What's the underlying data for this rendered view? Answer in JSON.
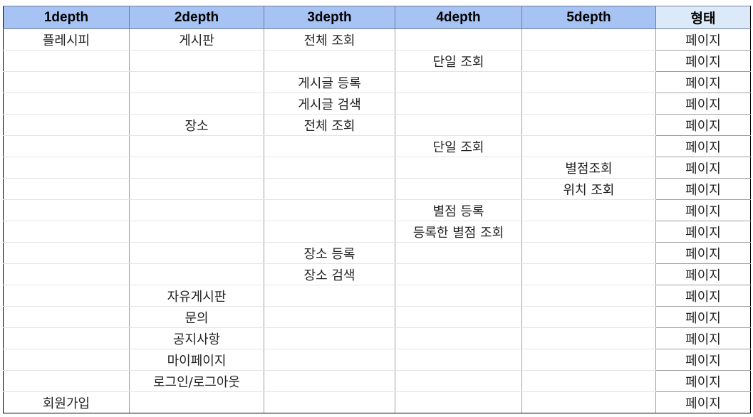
{
  "headers": [
    "1depth",
    "2depth",
    "3depth",
    "4depth",
    "5depth",
    "형태"
  ],
  "rows": [
    [
      "플레시피",
      "게시판",
      "전체 조회",
      "",
      "",
      "페이지"
    ],
    [
      "",
      "",
      "",
      "단일 조회",
      "",
      "페이지"
    ],
    [
      "",
      "",
      "게시글 등록",
      "",
      "",
      "페이지"
    ],
    [
      "",
      "",
      "게시글 검색",
      "",
      "",
      "페이지"
    ],
    [
      "",
      "장소",
      "전체 조회",
      "",
      "",
      "페이지"
    ],
    [
      "",
      "",
      "",
      "단일 조회",
      "",
      "페이지"
    ],
    [
      "",
      "",
      "",
      "",
      "별점조회",
      "페이지"
    ],
    [
      "",
      "",
      "",
      "",
      "위치 조회",
      "페이지"
    ],
    [
      "",
      "",
      "",
      "별점 등록",
      "",
      "페이지"
    ],
    [
      "",
      "",
      "",
      "등록한 별점 조회",
      "",
      "페이지"
    ],
    [
      "",
      "",
      "장소 등록",
      "",
      "",
      "페이지"
    ],
    [
      "",
      "",
      "장소 검색",
      "",
      "",
      "페이지"
    ],
    [
      "",
      "자유게시판",
      "",
      "",
      "",
      "페이지"
    ],
    [
      "",
      "문의",
      "",
      "",
      "",
      "페이지"
    ],
    [
      "",
      "공지사항",
      "",
      "",
      "",
      "페이지"
    ],
    [
      "",
      "마이페이지",
      "",
      "",
      "",
      "페이지"
    ],
    [
      "",
      "로그인/로그아웃",
      "",
      "",
      "",
      "페이지"
    ],
    [
      "회원가입",
      "",
      "",
      "",
      "",
      "페이지"
    ]
  ],
  "colors": {
    "header_bg": "#a7c3f3",
    "header_shape_bg": "#dce9f8",
    "grid": "#9e9e9e"
  }
}
